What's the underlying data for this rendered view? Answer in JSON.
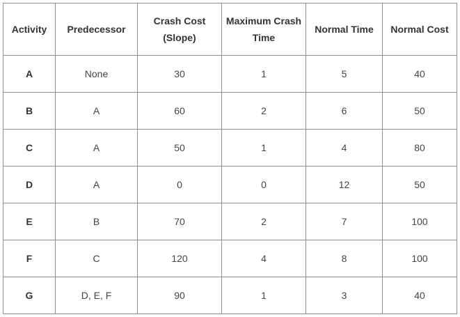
{
  "table": {
    "headers": [
      "Activity",
      "Predecessor",
      "Crash Cost (Slope)",
      "Maximum Crash Time",
      "Normal Time",
      "Normal Cost"
    ],
    "rows": [
      [
        "A",
        "None",
        30,
        1,
        5,
        40
      ],
      [
        "B",
        "A",
        60,
        2,
        6,
        50
      ],
      [
        "C",
        "A",
        50,
        1,
        4,
        80
      ],
      [
        "D",
        "A",
        0,
        0,
        12,
        50
      ],
      [
        "E",
        "B",
        70,
        2,
        7,
        100
      ],
      [
        "F",
        "C",
        120,
        4,
        8,
        100
      ],
      [
        "G",
        "D, E, F",
        90,
        1,
        3,
        40
      ]
    ]
  }
}
